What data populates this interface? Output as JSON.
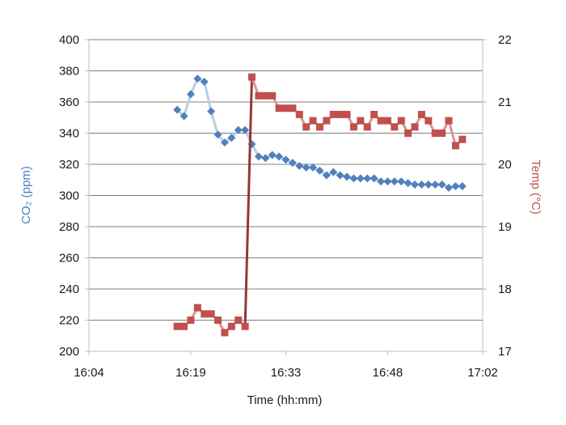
{
  "chart_data": {
    "type": "line",
    "title": "",
    "xlabel": "Time (hh:mm)",
    "ylabel_left": "CO₂ (ppm)",
    "ylabel_right": "Temp (°C)",
    "x_ticks": [
      "16:04",
      "16:19",
      "16:33",
      "16:48",
      "17:02"
    ],
    "y_left_ticks": [
      "200",
      "220",
      "240",
      "260",
      "280",
      "300",
      "320",
      "340",
      "360",
      "380",
      "400"
    ],
    "y_right_ticks": [
      "17",
      "18",
      "19",
      "20",
      "21",
      "22"
    ],
    "ylim_left": [
      200,
      400
    ],
    "ylim_right": [
      17,
      22
    ],
    "grid": "horizontal",
    "colors": {
      "co2_marker": "#4f81bd",
      "co2_line": "#b9cde5",
      "co2_label": "#4f81bd",
      "temp_marker": "#c0504d",
      "temp_line": "#d99694",
      "temp_jump": "#953735",
      "temp_label": "#c0504d",
      "grid": "#7f7f7f",
      "axis": "#bfbfbf"
    },
    "series": [
      {
        "axis": "left",
        "marker": "diamond",
        "x": [
          "16:17",
          "16:18",
          "16:19",
          "16:20",
          "16:21",
          "16:22",
          "16:23",
          "16:24",
          "16:25",
          "16:26",
          "16:27",
          "16:28",
          "16:29",
          "16:30",
          "16:31",
          "16:32",
          "16:33",
          "16:34",
          "16:35",
          "16:36",
          "16:37",
          "16:38",
          "16:39",
          "16:40",
          "16:41",
          "16:42",
          "16:43",
          "16:44",
          "16:45",
          "16:46",
          "16:47",
          "16:48",
          "16:49",
          "16:50",
          "16:51",
          "16:52",
          "16:53",
          "16:54",
          "16:55",
          "16:56",
          "16:57",
          "16:58",
          "16:59"
        ],
        "values": [
          355,
          351,
          365,
          375,
          373,
          354,
          339,
          334,
          337,
          342,
          342,
          333,
          325,
          324,
          326,
          325,
          323,
          321,
          319,
          318,
          318,
          316,
          313,
          315,
          313,
          312,
          311,
          311,
          311,
          311,
          309,
          309,
          309,
          309,
          308,
          307,
          307,
          307,
          307,
          307,
          305,
          306,
          306
        ]
      },
      {
        "axis": "right",
        "marker": "square",
        "x": [
          "16:17",
          "16:18",
          "16:19",
          "16:20",
          "16:21",
          "16:22",
          "16:23",
          "16:24",
          "16:25",
          "16:26",
          "16:27",
          "16:28",
          "16:29",
          "16:30",
          "16:31",
          "16:32",
          "16:33",
          "16:34",
          "16:35",
          "16:36",
          "16:37",
          "16:38",
          "16:39",
          "16:40",
          "16:41",
          "16:42",
          "16:43",
          "16:44",
          "16:45",
          "16:46",
          "16:47",
          "16:48",
          "16:49",
          "16:50",
          "16:51",
          "16:52",
          "16:53",
          "16:54",
          "16:55",
          "16:56",
          "16:57",
          "16:58",
          "16:59"
        ],
        "values": [
          17.4,
          17.4,
          17.5,
          17.7,
          17.6,
          17.6,
          17.5,
          17.3,
          17.4,
          17.5,
          17.4,
          21.4,
          21.1,
          21.1,
          21.1,
          20.9,
          20.9,
          20.9,
          20.8,
          20.6,
          20.7,
          20.6,
          20.7,
          20.8,
          20.8,
          20.8,
          20.6,
          20.7,
          20.6,
          20.8,
          20.7,
          20.7,
          20.6,
          20.7,
          20.5,
          20.6,
          20.8,
          20.7,
          20.5,
          20.5,
          20.7,
          20.3,
          20.4
        ]
      }
    ]
  }
}
